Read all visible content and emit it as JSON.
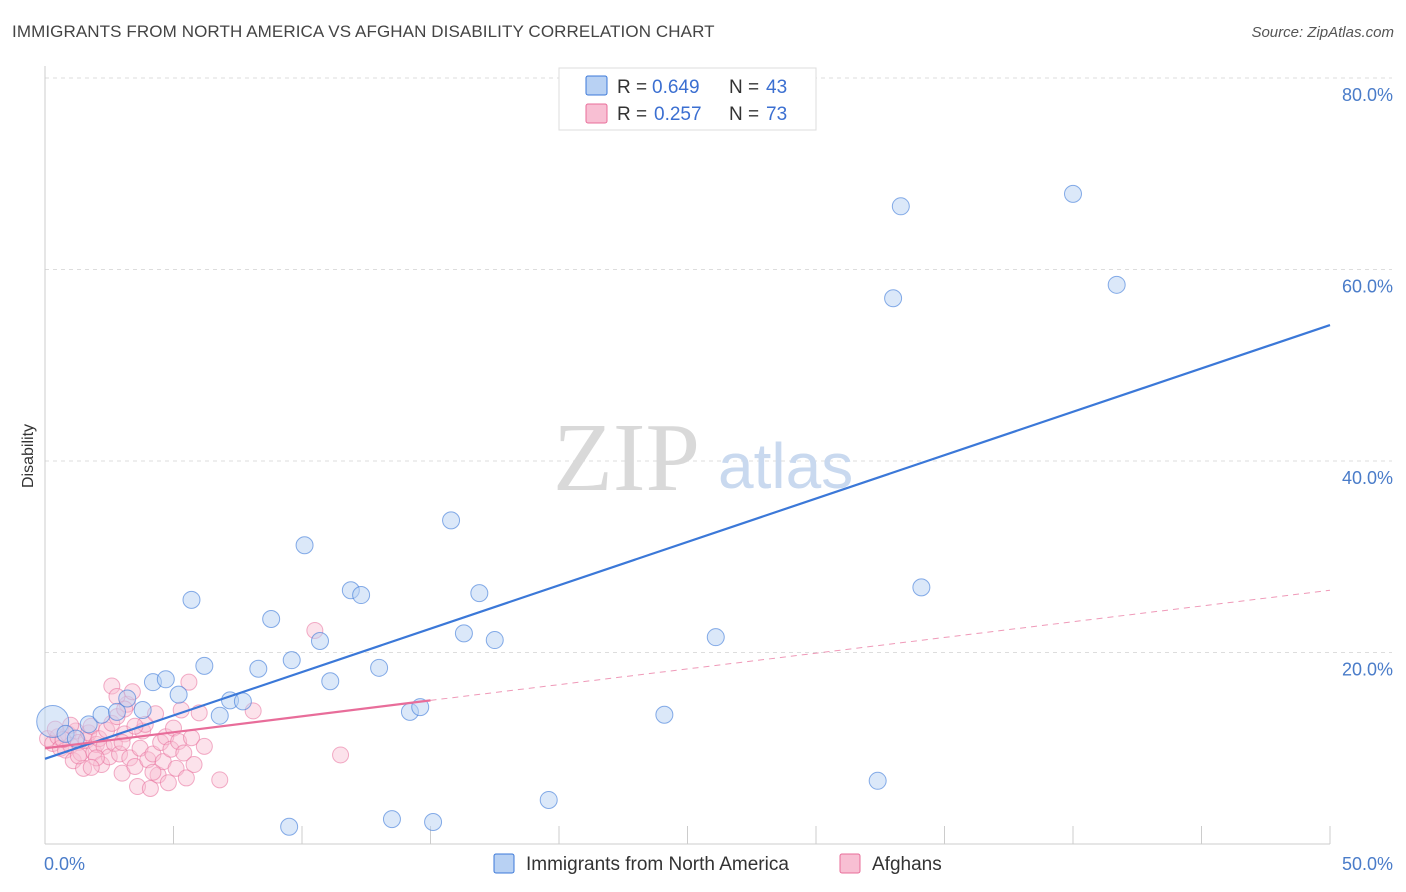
{
  "title": "IMMIGRANTS FROM NORTH AMERICA VS AFGHAN DISABILITY CORRELATION CHART",
  "source": "Source: ZipAtlas.com",
  "watermark": {
    "zip": "ZIP",
    "atlas": "atlas"
  },
  "colors": {
    "blue": "#3b78d8",
    "blue_fill": "#b8d1f3",
    "pink": "#e86d9a",
    "pink_fill": "#f8bfd3",
    "tick": "#4a7cc9",
    "grid": "#dddddd"
  },
  "legend": {
    "rows": [
      {
        "r_label": "R = ",
        "r_value": "0.649",
        "n_label": "N = ",
        "n_value": "43"
      },
      {
        "r_label": "R = ",
        "r_value": "0.257",
        "n_label": "N = ",
        "n_value": "73"
      }
    ]
  },
  "bottom_legend": [
    "Immigrants from North America",
    "Afghans"
  ],
  "chart_data": {
    "type": "scatter",
    "title": "IMMIGRANTS FROM NORTH AMERICA VS AFGHAN DISABILITY CORRELATION CHART",
    "xlabel": "",
    "ylabel": "Disability",
    "xlim": [
      0,
      50
    ],
    "ylim": [
      0,
      84
    ],
    "x_tick_labels": [
      "0.0%",
      "50.0%"
    ],
    "y_ticks": [
      20,
      40,
      60,
      80
    ],
    "y_tick_labels": [
      "20.0%",
      "40.0%",
      "60.0%",
      "80.0%"
    ],
    "grid": "horizontal dashed",
    "legend_position": "top-center",
    "series": [
      {
        "name": "Immigrants from North America",
        "color": "#3b78d8",
        "trend": {
          "x": [
            0,
            50
          ],
          "y": [
            8.9,
            54.2
          ],
          "style": "solid"
        },
        "points": [
          [
            0.3,
            12.8
          ],
          [
            0.8,
            11.5
          ],
          [
            1.2,
            11.0
          ],
          [
            1.7,
            12.5
          ],
          [
            2.2,
            13.5
          ],
          [
            2.8,
            13.8
          ],
          [
            3.2,
            15.2
          ],
          [
            3.8,
            14.0
          ],
          [
            4.2,
            16.9
          ],
          [
            4.7,
            17.2
          ],
          [
            5.2,
            15.6
          ],
          [
            5.7,
            25.5
          ],
          [
            6.2,
            18.6
          ],
          [
            6.8,
            13.4
          ],
          [
            7.2,
            15.0
          ],
          [
            7.7,
            14.9
          ],
          [
            8.3,
            18.3
          ],
          [
            8.8,
            23.5
          ],
          [
            9.5,
            1.8
          ],
          [
            9.6,
            19.2
          ],
          [
            10.1,
            31.2
          ],
          [
            10.7,
            21.2
          ],
          [
            11.1,
            17.0
          ],
          [
            11.9,
            26.5
          ],
          [
            12.3,
            26.0
          ],
          [
            13.0,
            18.4
          ],
          [
            13.5,
            2.6
          ],
          [
            14.2,
            13.8
          ],
          [
            14.6,
            14.3
          ],
          [
            15.1,
            2.3
          ],
          [
            15.8,
            33.8
          ],
          [
            16.3,
            22.0
          ],
          [
            16.9,
            26.2
          ],
          [
            17.5,
            21.3
          ],
          [
            19.6,
            4.6
          ],
          [
            24.1,
            13.5
          ],
          [
            26.1,
            21.6
          ],
          [
            32.4,
            6.6
          ],
          [
            33.0,
            57.0
          ],
          [
            33.3,
            66.6
          ],
          [
            34.1,
            26.8
          ],
          [
            40.0,
            67.9
          ],
          [
            41.7,
            58.4
          ]
        ]
      },
      {
        "name": "Afghans",
        "color": "#e86d9a",
        "trend": {
          "x": [
            0,
            15
          ],
          "y": [
            10.0,
            15.0
          ],
          "style": "solid",
          "extended_x": [
            15,
            50
          ],
          "extended_y": [
            15.0,
            26.5
          ],
          "extended_style": "dashed"
        },
        "points": [
          [
            0.1,
            11.0
          ],
          [
            0.3,
            10.5
          ],
          [
            0.5,
            11.2
          ],
          [
            0.6,
            10.0
          ],
          [
            0.8,
            9.8
          ],
          [
            0.9,
            11.5
          ],
          [
            1.0,
            10.3
          ],
          [
            1.1,
            8.7
          ],
          [
            1.2,
            11.8
          ],
          [
            1.3,
            10.6
          ],
          [
            1.4,
            9.5
          ],
          [
            1.5,
            7.9
          ],
          [
            1.6,
            10.8
          ],
          [
            1.7,
            11.6
          ],
          [
            1.8,
            12.3
          ],
          [
            1.9,
            9.6
          ],
          [
            2.0,
            10.4
          ],
          [
            2.1,
            11.0
          ],
          [
            2.2,
            8.3
          ],
          [
            2.3,
            10.2
          ],
          [
            2.4,
            11.9
          ],
          [
            2.5,
            9.1
          ],
          [
            2.6,
            12.6
          ],
          [
            2.7,
            10.5
          ],
          [
            2.8,
            13.3
          ],
          [
            2.9,
            9.4
          ],
          [
            3.0,
            7.4
          ],
          [
            3.1,
            11.5
          ],
          [
            3.2,
            14.6
          ],
          [
            3.3,
            9.0
          ],
          [
            3.4,
            15.9
          ],
          [
            3.5,
            8.1
          ],
          [
            3.6,
            6.0
          ],
          [
            3.7,
            10.0
          ],
          [
            3.8,
            11.8
          ],
          [
            3.9,
            12.5
          ],
          [
            4.0,
            8.8
          ],
          [
            4.1,
            5.8
          ],
          [
            4.2,
            9.4
          ],
          [
            4.3,
            13.6
          ],
          [
            4.4,
            7.2
          ],
          [
            4.5,
            10.6
          ],
          [
            4.6,
            8.6
          ],
          [
            4.7,
            11.2
          ],
          [
            4.8,
            6.4
          ],
          [
            4.9,
            9.9
          ],
          [
            5.0,
            12.1
          ],
          [
            5.1,
            7.9
          ],
          [
            5.2,
            10.7
          ],
          [
            5.3,
            14.0
          ],
          [
            5.4,
            9.5
          ],
          [
            5.5,
            6.9
          ],
          [
            5.6,
            16.9
          ],
          [
            5.7,
            11.1
          ],
          [
            5.8,
            8.3
          ],
          [
            6.0,
            13.7
          ],
          [
            6.2,
            10.2
          ],
          [
            2.6,
            16.5
          ],
          [
            2.8,
            15.4
          ],
          [
            3.1,
            14.1
          ],
          [
            0.4,
            12.0
          ],
          [
            0.7,
            10.9
          ],
          [
            1.0,
            12.4
          ],
          [
            1.3,
            9.2
          ],
          [
            2.0,
            9.0
          ],
          [
            3.0,
            10.6
          ],
          [
            3.5,
            12.3
          ],
          [
            4.2,
            7.5
          ],
          [
            6.8,
            6.7
          ],
          [
            8.1,
            13.9
          ],
          [
            10.5,
            22.3
          ],
          [
            11.5,
            9.3
          ],
          [
            1.8,
            8.0
          ]
        ]
      }
    ]
  }
}
